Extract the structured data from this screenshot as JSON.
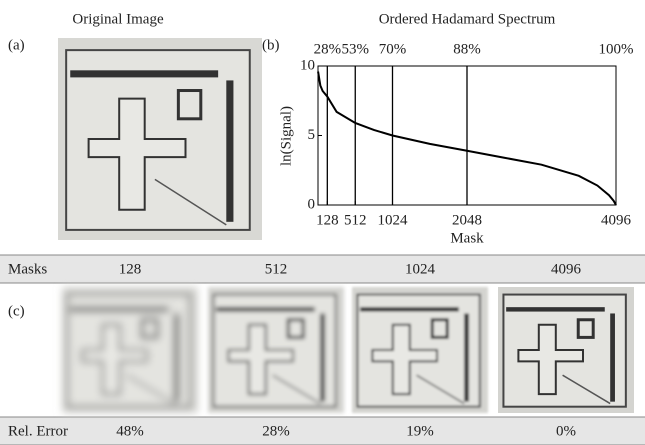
{
  "panel_labels": [
    "(a)",
    "(b)",
    "(c)"
  ],
  "image_title": "Original Image",
  "chart_data": {
    "type": "line",
    "title": "Ordered Hadamard Spectrum",
    "x_label": "Mask",
    "y_label": "ln(Signal)",
    "x": [
      1,
      32,
      64,
      128,
      256,
      512,
      768,
      1024,
      1536,
      2048,
      2560,
      3072,
      3584,
      3840,
      4000,
      4064,
      4096
    ],
    "values": [
      9.6,
      8.6,
      8.2,
      7.8,
      6.7,
      5.9,
      5.4,
      5.0,
      4.4,
      3.9,
      3.4,
      2.9,
      2.1,
      1.4,
      0.7,
      0.3,
      0
    ],
    "color": "#000000",
    "xlim": [
      0,
      4096
    ],
    "ylim": [
      0,
      10
    ],
    "xticks": [
      128,
      512,
      1024,
      2048,
      4096
    ],
    "yticks": [
      0,
      5,
      10
    ],
    "annotations": [
      {
        "x": 128,
        "label": "28%"
      },
      {
        "x": 512,
        "label": "53%"
      },
      {
        "x": 1024,
        "label": "70%"
      },
      {
        "x": 2048,
        "label": "88%"
      },
      {
        "x": 4096,
        "label": "100%"
      }
    ],
    "marker_lines": [
      128,
      512,
      1024,
      2048
    ]
  },
  "masks_row": {
    "label": "Masks",
    "values": [
      "128",
      "512",
      "1024",
      "4096"
    ]
  },
  "error_row": {
    "label": "Rel. Error",
    "values": [
      "48%",
      "28%",
      "19%",
      "0%"
    ]
  }
}
